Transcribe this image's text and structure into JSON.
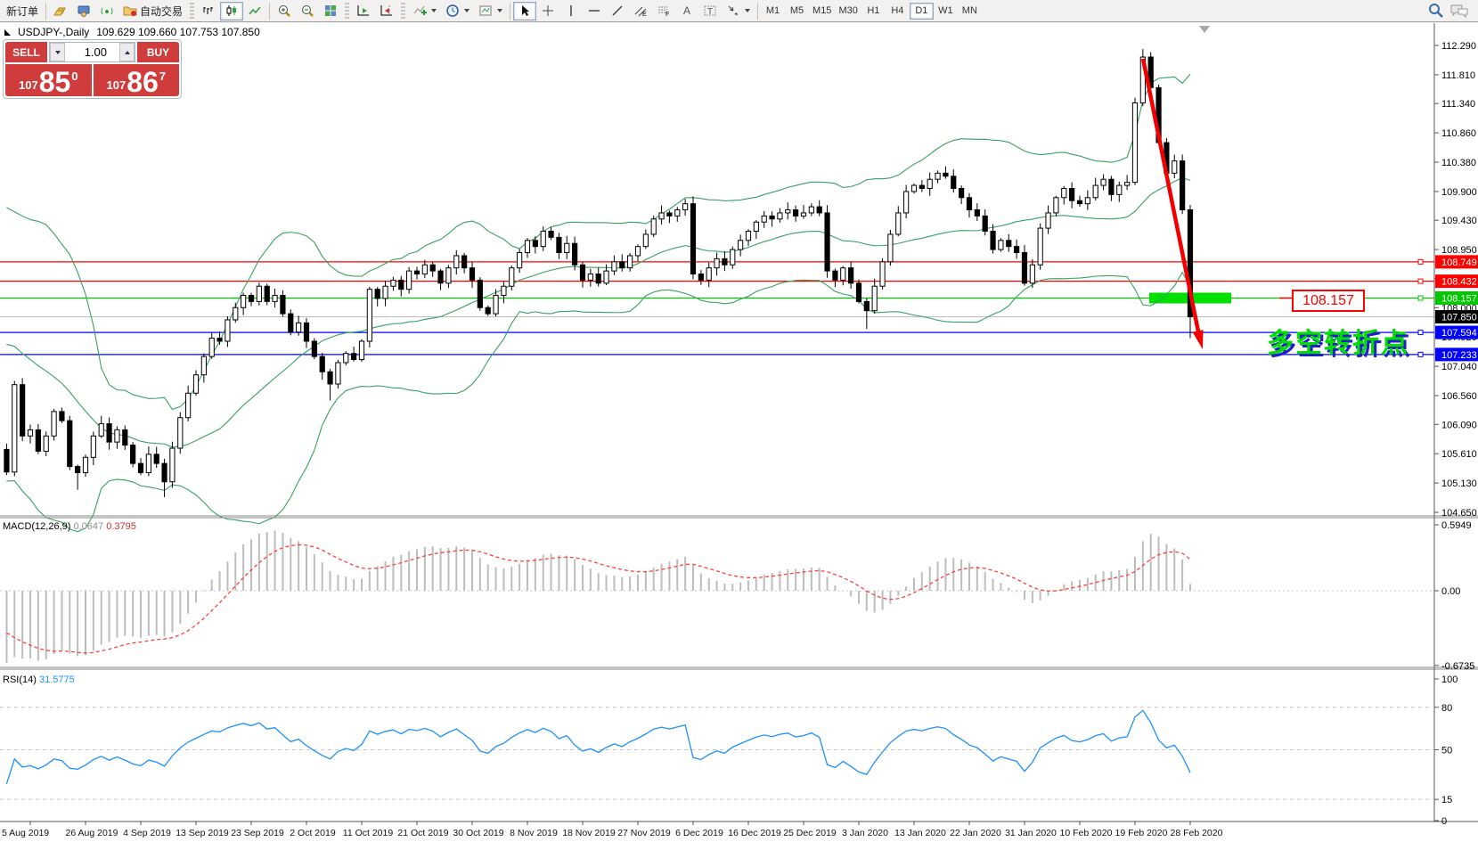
{
  "toolbar": {
    "new_order": "新订单",
    "autotrading": "自动交易",
    "timeframes": [
      "M1",
      "M5",
      "M15",
      "M30",
      "H1",
      "H4",
      "D1",
      "W1",
      "MN"
    ],
    "active_timeframe": "D1"
  },
  "chart_header": {
    "symbol": "USDJPY-,Daily",
    "ohlc": "109.629 109.660 107.753 107.850"
  },
  "one_click": {
    "sell_label": "SELL",
    "buy_label": "BUY",
    "volume": "1.00",
    "sell_price_small": "107",
    "sell_price_big": "85",
    "sell_price_sup": "0",
    "buy_price_small": "107",
    "buy_price_big": "86",
    "buy_price_sup": "7"
  },
  "indicators": {
    "macd_label": "MACD(12,26,9)",
    "macd_value_main": "0.0647",
    "macd_value_signal": "0.3795",
    "rsi_label": "RSI(14)",
    "rsi_value": "31.5775"
  },
  "annotations": {
    "level_label": "108.157",
    "cn_text": "多空转折点"
  },
  "axes": {
    "price_ticks": [
      112.29,
      111.81,
      111.34,
      110.86,
      110.38,
      109.9,
      109.43,
      108.95,
      108.47,
      108.0,
      107.52,
      107.04,
      106.56,
      106.09,
      105.61,
      105.13,
      104.65
    ],
    "macd_ticks": [
      {
        "label": "0.5949",
        "v": 0.5949
      },
      {
        "label": "0.00",
        "v": 0
      },
      {
        "label": "-0.6735",
        "v": -0.6735
      }
    ],
    "rsi_ticks": [
      {
        "label": "100",
        "v": 100
      },
      {
        "label": "80",
        "v": 80
      },
      {
        "label": "50",
        "v": 50
      },
      {
        "label": "15",
        "v": 15
      },
      {
        "label": "0",
        "v": 0
      }
    ],
    "dates": [
      "5 Aug 2019",
      "26 Aug 2019",
      "4 Sep 2019",
      "13 Sep 2019",
      "23 Sep 2019",
      "2 Oct 2019",
      "11 Oct 2019",
      "21 Oct 2019",
      "30 Oct 2019",
      "8 Nov 2019",
      "18 Nov 2019",
      "27 Nov 2019",
      "6 Dec 2019",
      "16 Dec 2019",
      "25 Dec 2019",
      "3 Jan 2020",
      "13 Jan 2020",
      "22 Jan 2020",
      "31 Jan 2020",
      "10 Feb 2020",
      "19 Feb 2020",
      "28 Feb 2020"
    ]
  },
  "levels": [
    {
      "price": 108.749,
      "label": "108.749",
      "line": "#ff0000",
      "badge": "#ff0000",
      "fg": "#ffffff",
      "handle": true
    },
    {
      "price": 108.432,
      "label": "108.432",
      "line": "#ff0000",
      "badge": "#ff0000",
      "fg": "#ffffff",
      "handle": true
    },
    {
      "price": 108.157,
      "label": "108.157",
      "line": "#00c800",
      "badge": "#00c800",
      "fg": "#ffffff",
      "handle": true
    },
    {
      "price": 107.85,
      "label": "107.850",
      "line": "#c0c0c0",
      "badge": "#000000",
      "fg": "#ffffff",
      "handle": false
    },
    {
      "price": 107.594,
      "label": "107.594",
      "line": "#0000ff",
      "badge": "#0000ff",
      "fg": "#ffffff",
      "handle": true
    },
    {
      "price": 107.233,
      "label": "107.233",
      "line": "#0000ff",
      "badge": "#0000ff",
      "fg": "#ffffff",
      "handle": true
    }
  ],
  "chart_data": {
    "type": "candlestick",
    "symbol": "USDJPY",
    "period": "Daily",
    "ylim": [
      104.65,
      112.47
    ],
    "macd_ylim": [
      -0.6735,
      0.5949
    ],
    "key_levels": [
      108.749,
      108.432,
      108.157,
      107.85,
      107.594,
      107.233
    ],
    "bollinger": {
      "period": 20,
      "deviation": 2
    },
    "macd": {
      "fast": 12,
      "slow": 26,
      "signal": 9
    },
    "rsi": {
      "period": 14,
      "levels": [
        80,
        50,
        15
      ]
    },
    "warmup_closes": [
      108.25,
      107.95,
      107.71,
      107.65,
      108.18,
      108.25,
      108.2,
      108.61,
      108.59,
      108.78,
      108.76,
      107.33,
      106.59,
      105.94,
      106.47,
      106.26,
      106.09,
      105.68,
      105.31,
      106.74,
      105.9
    ],
    "closes": [
      106.0,
      105.65,
      105.9,
      106.3,
      106.15,
      105.4,
      105.3,
      105.55,
      105.9,
      106.1,
      105.8,
      106.0,
      105.75,
      105.45,
      105.3,
      105.6,
      105.45,
      105.15,
      105.7,
      106.2,
      106.6,
      106.9,
      107.2,
      107.5,
      107.45,
      107.8,
      108.0,
      108.2,
      108.1,
      108.35,
      108.1,
      108.2,
      107.9,
      107.6,
      107.75,
      107.45,
      107.2,
      106.95,
      106.75,
      107.1,
      107.25,
      107.15,
      107.45,
      108.3,
      108.15,
      108.35,
      108.45,
      108.3,
      108.6,
      108.55,
      108.7,
      108.6,
      108.4,
      108.65,
      108.85,
      108.65,
      108.45,
      108.0,
      107.9,
      108.2,
      108.35,
      108.65,
      108.9,
      109.1,
      109.0,
      109.25,
      109.15,
      108.9,
      109.05,
      108.7,
      108.45,
      108.55,
      108.4,
      108.6,
      108.75,
      108.65,
      108.85,
      109.0,
      109.2,
      109.45,
      109.55,
      109.5,
      109.6,
      109.7,
      108.55,
      108.45,
      108.65,
      108.8,
      108.7,
      108.95,
      109.1,
      109.25,
      109.4,
      109.5,
      109.45,
      109.55,
      109.6,
      109.5,
      109.55,
      109.65,
      109.55,
      108.6,
      108.45,
      108.65,
      108.4,
      108.1,
      107.95,
      108.35,
      108.75,
      109.2,
      109.55,
      109.9,
      110.0,
      109.95,
      110.1,
      110.2,
      110.15,
      109.95,
      109.8,
      109.6,
      109.5,
      109.25,
      108.95,
      109.1,
      109.0,
      108.9,
      108.4,
      108.7,
      109.3,
      109.55,
      109.8,
      109.95,
      109.75,
      109.7,
      109.8,
      110.0,
      110.1,
      109.85,
      110.0,
      110.05,
      111.35,
      112.1,
      111.6,
      110.7,
      110.2,
      110.4,
      109.6,
      107.85
    ],
    "special_wicks": {
      "6": {
        "low": 105.02
      },
      "17": {
        "low": 104.9
      },
      "38": {
        "low": 106.48
      },
      "106": {
        "low": 107.65
      },
      "141": {
        "high": 112.23
      },
      "147": {
        "low": 107.5
      }
    }
  },
  "colors": {
    "bollinger": "#38a060",
    "bull": "#ffffff",
    "bear": "#000000",
    "macd_hist": "#bdbdbd",
    "macd_signal": "#ff4040",
    "rsi_line": "#1e90ff",
    "arrow": "#f20000",
    "highlight_rect": "#00e000",
    "panel_red": "#d03c3c"
  }
}
